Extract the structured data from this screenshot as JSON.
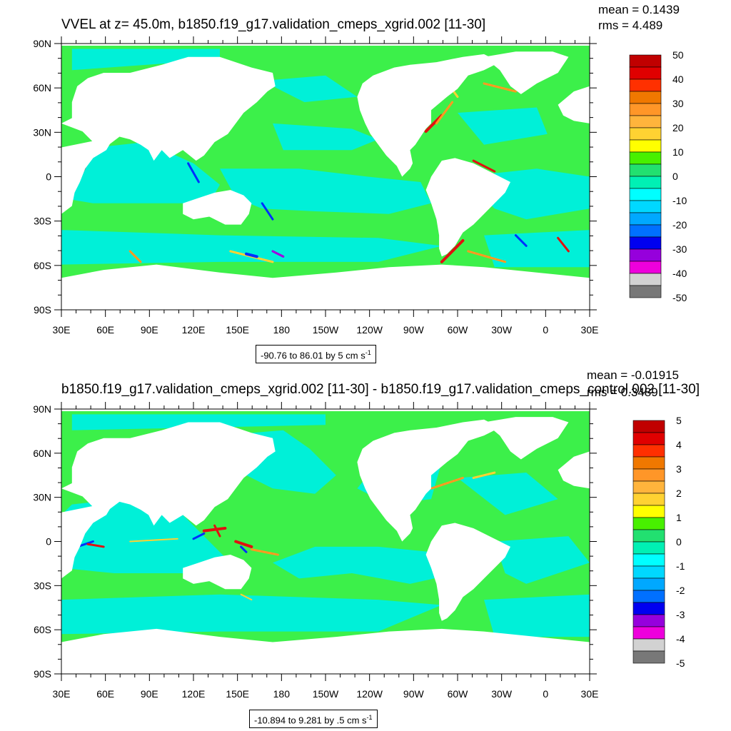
{
  "panels": [
    {
      "title": "VVEL at z=  45.0m, b1850.f19_g17.validation_cmeps_xgrid.002 [11-30]",
      "mean": "mean = 0.1439",
      "rms": "rms = 4.489",
      "range_label": "-90.76 to 86.01 by 5 cm s",
      "range_unit_sup": "-1",
      "colorbar_labels": [
        "50",
        "40",
        "30",
        "20",
        "10",
        "0",
        "-10",
        "-20",
        "-30",
        "-40",
        "-50"
      ]
    },
    {
      "title": "b1850.f19_g17.validation_cmeps_xgrid.002 [11-30] - b1850.f19_g17.validation_cmeps_control.002 [11-30]",
      "mean": "mean = -0.01915",
      "rms": "rms = 0.3489",
      "range_label": "-10.894 to 9.281 by .5 cm s",
      "range_unit_sup": "-1",
      "colorbar_labels": [
        "5",
        "4",
        "3",
        "2",
        "1",
        "0",
        "-1",
        "-2",
        "-3",
        "-4",
        "-5"
      ]
    }
  ],
  "axes": {
    "lat_labels": [
      "90N",
      "60N",
      "30N",
      "0",
      "30S",
      "60S",
      "90S"
    ],
    "lon_labels": [
      "30E",
      "60E",
      "90E",
      "120E",
      "150E",
      "180",
      "150W",
      "120W",
      "90W",
      "60W",
      "30W",
      "0",
      "30E"
    ]
  },
  "colors": {
    "ocean_positive": "#3cf04a",
    "ocean_negative": "#00f0d8",
    "land": "#ffffff",
    "colorbar": [
      "#c00000",
      "#e00000",
      "#ff3000",
      "#f07800",
      "#ff9628",
      "#ffb43c",
      "#ffd232",
      "#ffff00",
      "#48f000",
      "#22e070",
      "#00f0b4",
      "#00ffff",
      "#00d8ff",
      "#00a8ff",
      "#0070ff",
      "#0000f0",
      "#9600dc",
      "#ee00dc",
      "#d2d2d2",
      "#787878"
    ]
  }
}
